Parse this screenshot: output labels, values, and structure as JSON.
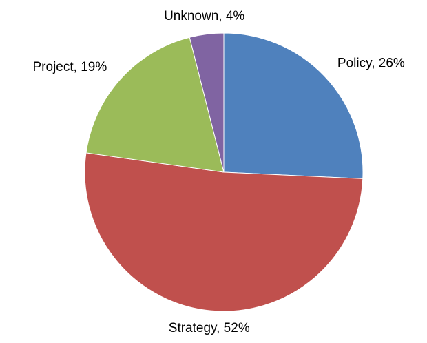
{
  "chart_data": {
    "type": "pie",
    "categories": [
      "Policy",
      "Strategy",
      "Project",
      "Unknown"
    ],
    "values": [
      26,
      52,
      19,
      4
    ],
    "value_labels": [
      "Policy, 26%",
      "Strategy, 52%",
      "Project, 19%",
      "Unknown, 4%"
    ],
    "colors": [
      "#4f81bd",
      "#c0504d",
      "#9bbb59",
      "#8064a2"
    ]
  }
}
